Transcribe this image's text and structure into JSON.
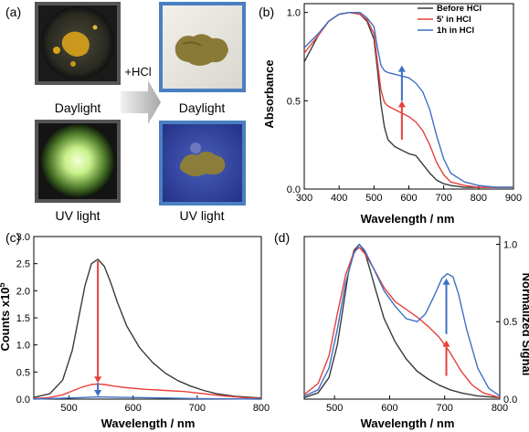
{
  "panel_a": {
    "label": "(a)",
    "captions": {
      "before_day": "Daylight",
      "before_uv": "UV light",
      "after_day": "Daylight",
      "after_uv": "UV light",
      "arrow": "+HCl"
    },
    "colors": {
      "before_frame": "#555555",
      "after_frame": "#4a7fc1"
    }
  },
  "chart_data": [
    {
      "panel": "(b)",
      "type": "line",
      "title": "",
      "xlabel": "Wavelength / nm",
      "ylabel": "Absorbance",
      "xlim": [
        300,
        900
      ],
      "ylim": [
        0,
        1.05
      ],
      "xticks": [
        300,
        400,
        500,
        600,
        700,
        800,
        900
      ],
      "yticks": [
        0.0,
        0.5,
        1.0
      ],
      "ytick_labels": [
        "0.0",
        "0.5",
        "1.0"
      ],
      "legend_position": "top-right",
      "series": [
        {
          "name": "Before HCl",
          "color": "#3a3a3a",
          "x": [
            300,
            340,
            370,
            400,
            430,
            460,
            480,
            500,
            510,
            520,
            530,
            540,
            560,
            580,
            600,
            620,
            640,
            660,
            680,
            700,
            720,
            760,
            800,
            850,
            900
          ],
          "y": [
            0.72,
            0.87,
            0.95,
            0.99,
            1.0,
            0.99,
            0.95,
            0.85,
            0.68,
            0.48,
            0.35,
            0.28,
            0.24,
            0.22,
            0.2,
            0.19,
            0.14,
            0.09,
            0.05,
            0.03,
            0.02,
            0.01,
            0.01,
            0.01,
            0.01
          ]
        },
        {
          "name": "5' in HCl",
          "color": "#e8403c",
          "x": [
            300,
            340,
            370,
            400,
            430,
            460,
            480,
            500,
            510,
            520,
            530,
            540,
            560,
            580,
            600,
            620,
            640,
            660,
            680,
            700,
            720,
            760,
            800,
            850,
            900
          ],
          "y": [
            0.77,
            0.87,
            0.95,
            0.99,
            1.0,
            0.99,
            0.96,
            0.88,
            0.72,
            0.56,
            0.49,
            0.47,
            0.45,
            0.43,
            0.41,
            0.38,
            0.33,
            0.25,
            0.15,
            0.08,
            0.04,
            0.02,
            0.01,
            0.01,
            0.01
          ]
        },
        {
          "name": "1h in HCl",
          "color": "#3f6fc4",
          "x": [
            300,
            340,
            370,
            400,
            430,
            460,
            480,
            500,
            510,
            520,
            530,
            540,
            560,
            580,
            600,
            620,
            640,
            660,
            680,
            700,
            720,
            760,
            800,
            850,
            900
          ],
          "y": [
            0.8,
            0.88,
            0.95,
            0.99,
            1.0,
            1.0,
            0.97,
            0.92,
            0.8,
            0.7,
            0.67,
            0.66,
            0.65,
            0.64,
            0.63,
            0.6,
            0.55,
            0.45,
            0.3,
            0.17,
            0.09,
            0.04,
            0.02,
            0.01,
            0.01
          ]
        }
      ],
      "annotations": [
        {
          "type": "arrow",
          "x": 580,
          "y_from": 0.28,
          "y_to": 0.5,
          "color": "#e8403c"
        },
        {
          "type": "arrow",
          "x": 580,
          "y_from": 0.5,
          "y_to": 0.7,
          "color": "#3f6fc4"
        }
      ]
    },
    {
      "panel": "(c)",
      "type": "line",
      "title": "",
      "xlabel": "Wavelength / nm",
      "ylabel": "Counts x10",
      "ylabel_sup": "5",
      "xlim": [
        445,
        800
      ],
      "ylim": [
        0,
        3.0
      ],
      "xticks": [
        500,
        600,
        700,
        800
      ],
      "yticks": [
        0.0,
        0.5,
        1.0,
        1.5,
        2.0,
        2.5,
        3.0
      ],
      "ytick_labels": [
        "0.0",
        "0.5",
        "1.0",
        "1.5",
        "2.0",
        "2.5",
        "3.0"
      ],
      "series": [
        {
          "name": "",
          "color": "#3a3a3a",
          "x": [
            445,
            470,
            490,
            505,
            515,
            525,
            535,
            545,
            555,
            565,
            575,
            590,
            610,
            630,
            650,
            670,
            690,
            710,
            730,
            760,
            800
          ],
          "y": [
            0.03,
            0.1,
            0.35,
            0.9,
            1.5,
            2.1,
            2.5,
            2.58,
            2.45,
            2.15,
            1.8,
            1.35,
            0.95,
            0.68,
            0.48,
            0.34,
            0.24,
            0.16,
            0.1,
            0.05,
            0.02
          ]
        },
        {
          "name": "",
          "color": "#e8403c",
          "x": [
            445,
            470,
            490,
            505,
            520,
            535,
            545,
            555,
            570,
            590,
            620,
            650,
            680,
            710,
            740,
            770,
            800
          ],
          "y": [
            0.01,
            0.03,
            0.08,
            0.15,
            0.22,
            0.27,
            0.28,
            0.27,
            0.24,
            0.21,
            0.18,
            0.16,
            0.14,
            0.1,
            0.06,
            0.03,
            0.01
          ]
        },
        {
          "name": "",
          "color": "#3f6fc4",
          "x": [
            445,
            500,
            545,
            600,
            700,
            800
          ],
          "y": [
            0.0,
            0.02,
            0.04,
            0.03,
            0.01,
            0.0
          ]
        }
      ],
      "annotations": [
        {
          "type": "arrow",
          "x": 545,
          "y_from": 2.55,
          "y_to": 0.3,
          "color": "#e8403c"
        },
        {
          "type": "arrow",
          "x": 545,
          "y_from": 0.3,
          "y_to": 0.05,
          "color": "#3f6fc4"
        }
      ]
    },
    {
      "panel": "(d)",
      "type": "line",
      "title": "",
      "xlabel": "Wavelength / nm",
      "ylabel": "Normalized Signal",
      "ylabel_side": "right",
      "xlim": [
        445,
        800
      ],
      "ylim": [
        0,
        1.05
      ],
      "xticks": [
        500,
        600,
        700,
        800
      ],
      "yticks": [
        0.0,
        0.5,
        1.0
      ],
      "ytick_labels": [
        "0.0",
        "0.5",
        "1.0"
      ],
      "series": [
        {
          "name": "",
          "color": "#3a3a3a",
          "x": [
            445,
            470,
            490,
            505,
            515,
            525,
            535,
            545,
            555,
            565,
            575,
            590,
            610,
            630,
            650,
            670,
            690,
            710,
            730,
            760,
            800
          ],
          "y": [
            0.01,
            0.04,
            0.14,
            0.35,
            0.58,
            0.81,
            0.96,
            1.0,
            0.95,
            0.83,
            0.7,
            0.52,
            0.37,
            0.26,
            0.18,
            0.13,
            0.09,
            0.06,
            0.04,
            0.02,
            0.01
          ]
        },
        {
          "name": "",
          "color": "#e8403c",
          "x": [
            445,
            470,
            490,
            505,
            520,
            535,
            545,
            555,
            570,
            590,
            610,
            630,
            650,
            670,
            690,
            710,
            730,
            750,
            770,
            800
          ],
          "y": [
            0.03,
            0.1,
            0.28,
            0.55,
            0.8,
            0.95,
            0.98,
            0.94,
            0.85,
            0.72,
            0.63,
            0.58,
            0.53,
            0.47,
            0.4,
            0.3,
            0.18,
            0.09,
            0.04,
            0.01
          ]
        },
        {
          "name": "",
          "color": "#3f6fc4",
          "x": [
            445,
            470,
            490,
            505,
            520,
            535,
            545,
            555,
            570,
            590,
            610,
            630,
            650,
            665,
            680,
            695,
            705,
            715,
            725,
            740,
            760,
            780,
            800
          ],
          "y": [
            0.02,
            0.06,
            0.2,
            0.45,
            0.75,
            0.94,
            1.0,
            0.96,
            0.85,
            0.7,
            0.6,
            0.52,
            0.5,
            0.55,
            0.66,
            0.78,
            0.81,
            0.79,
            0.68,
            0.45,
            0.2,
            0.07,
            0.02
          ]
        }
      ],
      "annotations": [
        {
          "type": "arrow",
          "x": 703,
          "y_from": 0.15,
          "y_to": 0.38,
          "color": "#e8403c"
        },
        {
          "type": "arrow",
          "x": 703,
          "y_from": 0.42,
          "y_to": 0.78,
          "color": "#3f6fc4"
        }
      ]
    }
  ]
}
